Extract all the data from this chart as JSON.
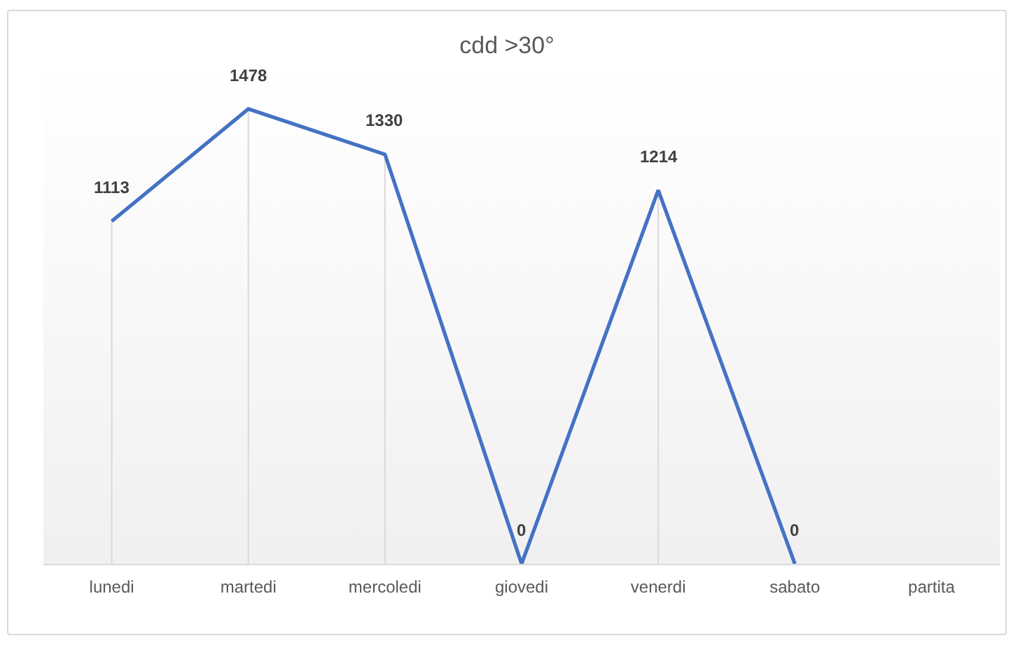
{
  "chart_data": {
    "type": "line",
    "title": "cdd >30°",
    "categories": [
      "lunedi",
      "martedi",
      "mercoledi",
      "giovedi",
      "venerdi",
      "sabato",
      "partita"
    ],
    "series": [
      {
        "color": "#4472c4",
        "values": [
          1113,
          1478,
          1330,
          0,
          1214,
          0,
          null
        ]
      }
    ],
    "data_labels": true,
    "marker": "none",
    "grid": "x"
  }
}
